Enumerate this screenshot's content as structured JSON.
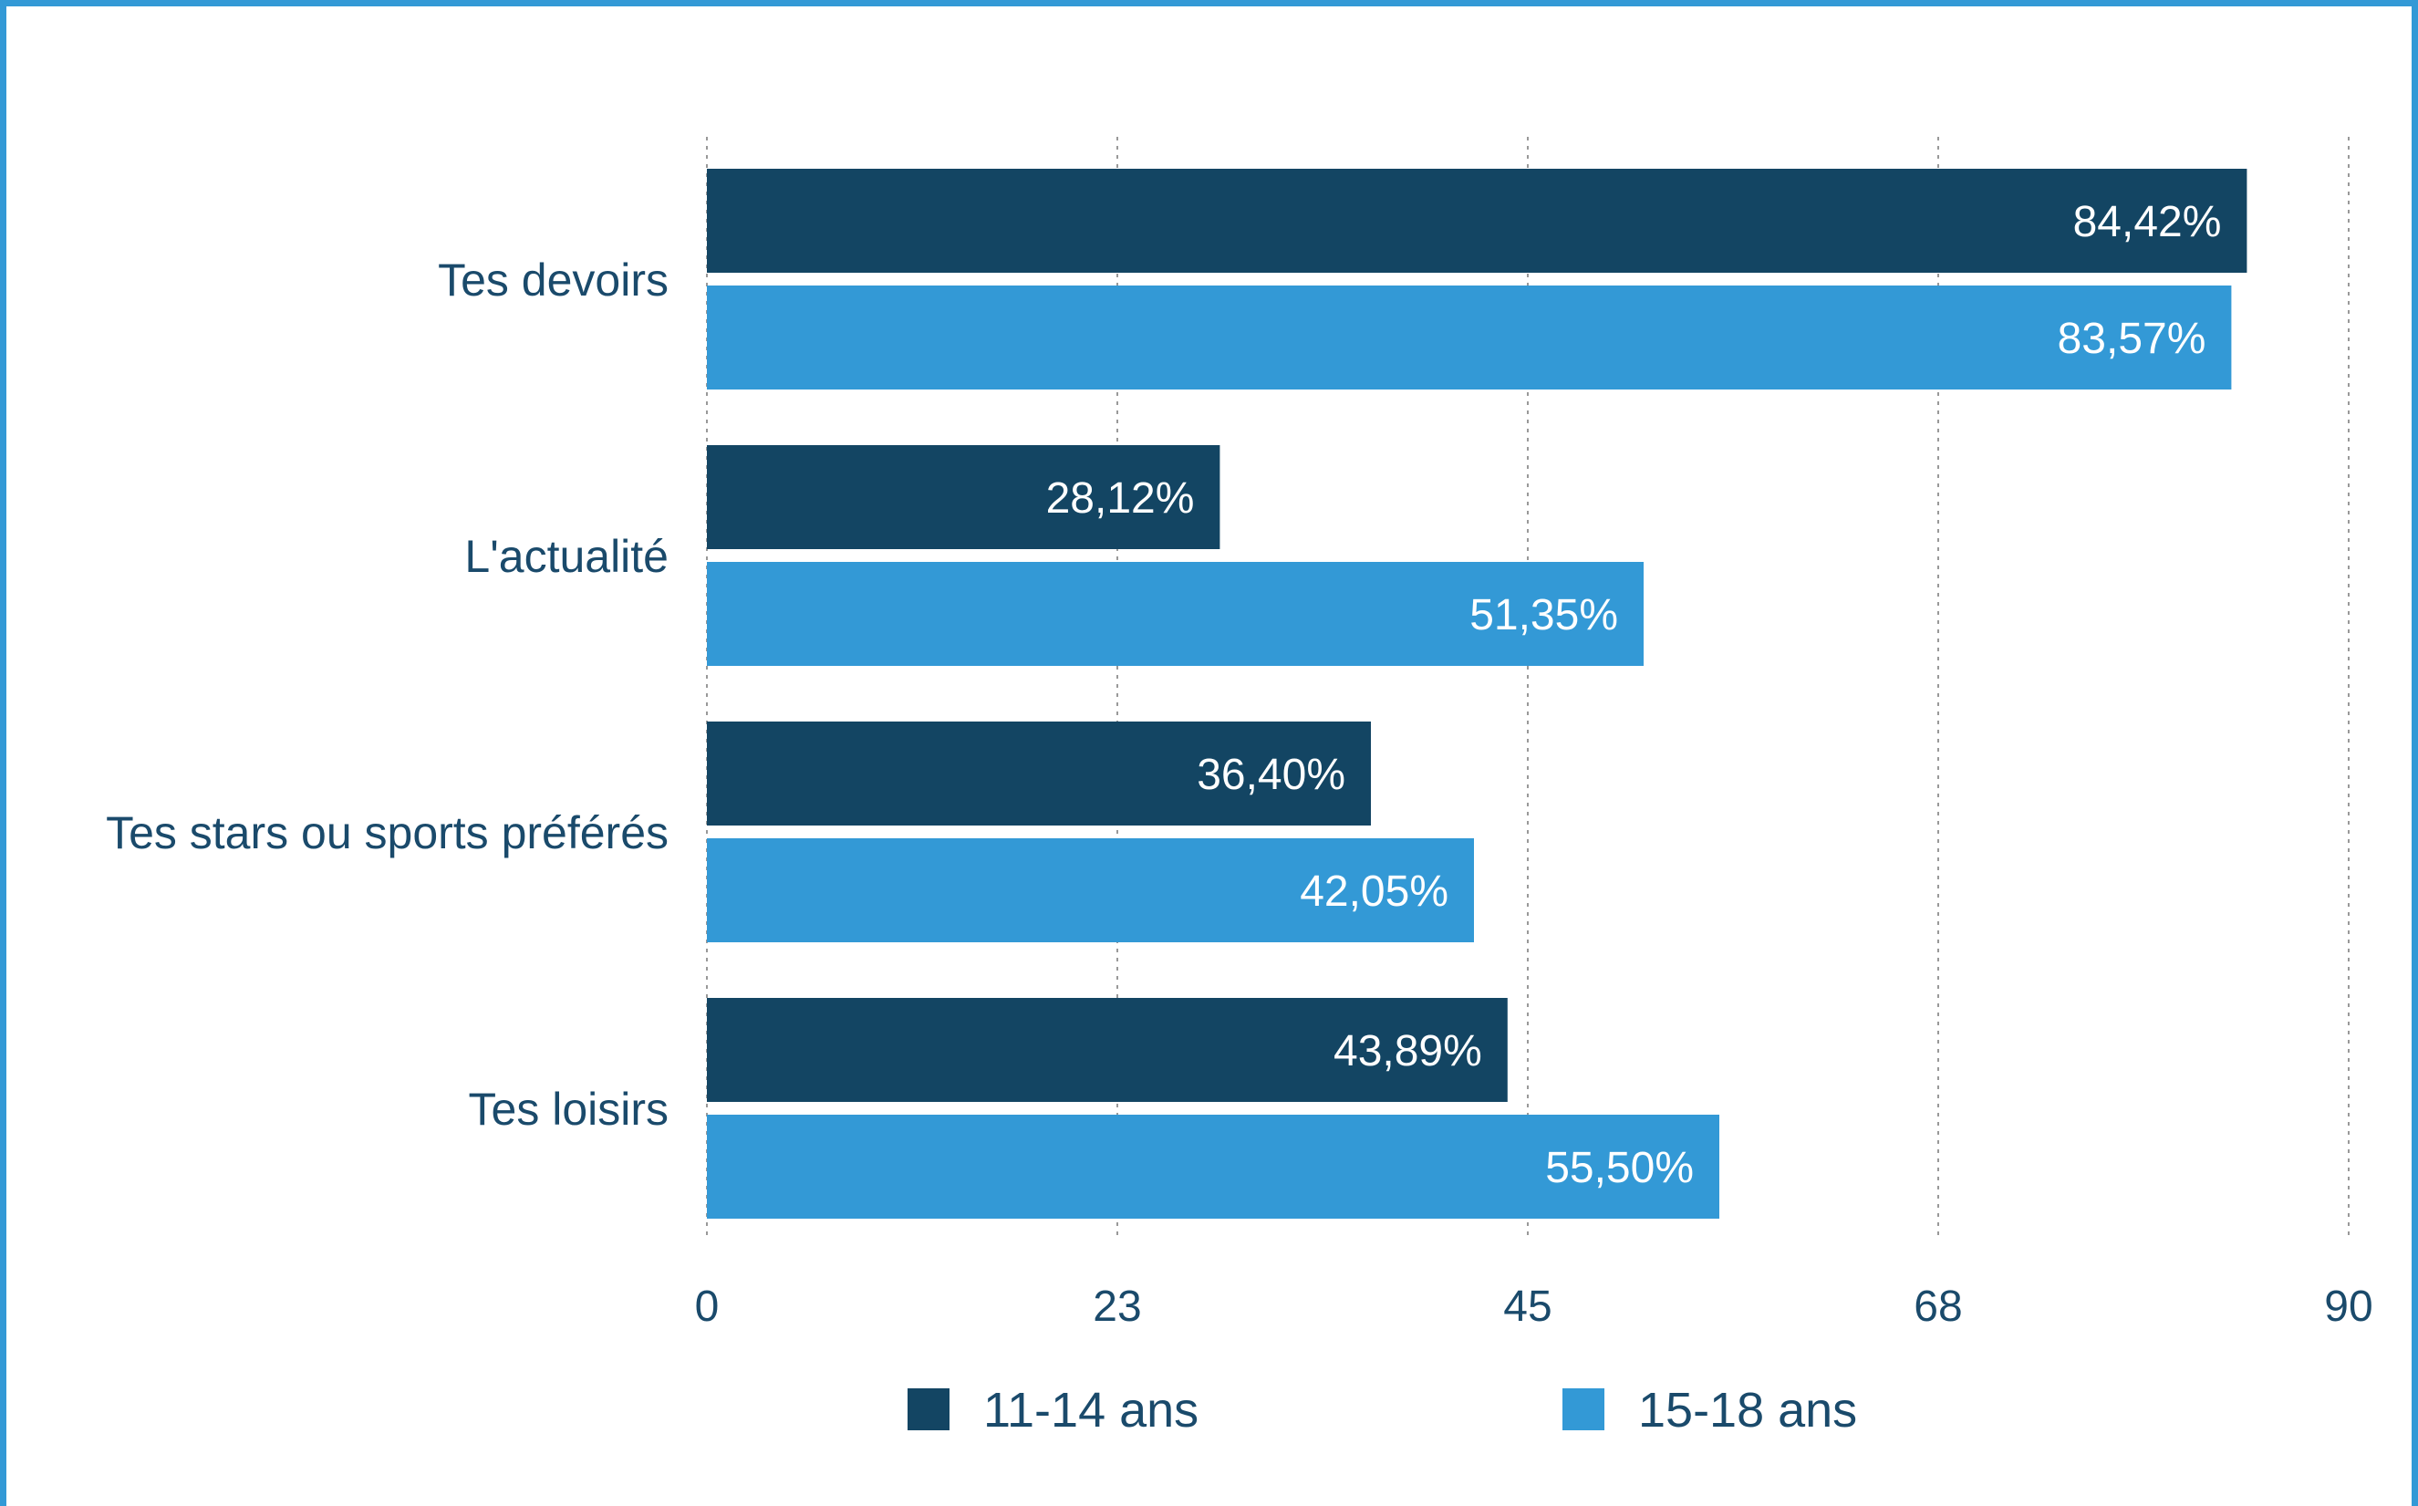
{
  "chart_data": {
    "type": "bar",
    "orientation": "horizontal",
    "title": "",
    "xlabel": "",
    "ylabel": "",
    "categories": [
      "Tes devoirs",
      "L'actualité",
      "Tes stars ou sports préférés",
      "Tes loisirs"
    ],
    "series": [
      {
        "name": "11-14 ans",
        "color": "#134563",
        "values": [
          84.42,
          28.12,
          36.4,
          43.89
        ],
        "labels": [
          "84,42%",
          "28,12%",
          "36,40%",
          "43,89%"
        ]
      },
      {
        "name": "15-18 ans",
        "color": "#3399d6",
        "values": [
          83.57,
          51.35,
          42.05,
          55.5
        ],
        "labels": [
          "83,57%",
          "51,35%",
          "42,05%",
          "55,50%"
        ]
      }
    ],
    "xlim": [
      0,
      90
    ],
    "x_ticks": [
      0,
      22.5,
      45,
      67.5,
      90
    ],
    "x_tick_labels": [
      "0",
      "23",
      "45",
      "68",
      "90"
    ],
    "grid": true,
    "grid_style": "dotted vertical",
    "legend_position": "bottom"
  },
  "colors": {
    "frame_border": "#3399d6",
    "grid": "#999999",
    "text": "#1a4a6b"
  }
}
